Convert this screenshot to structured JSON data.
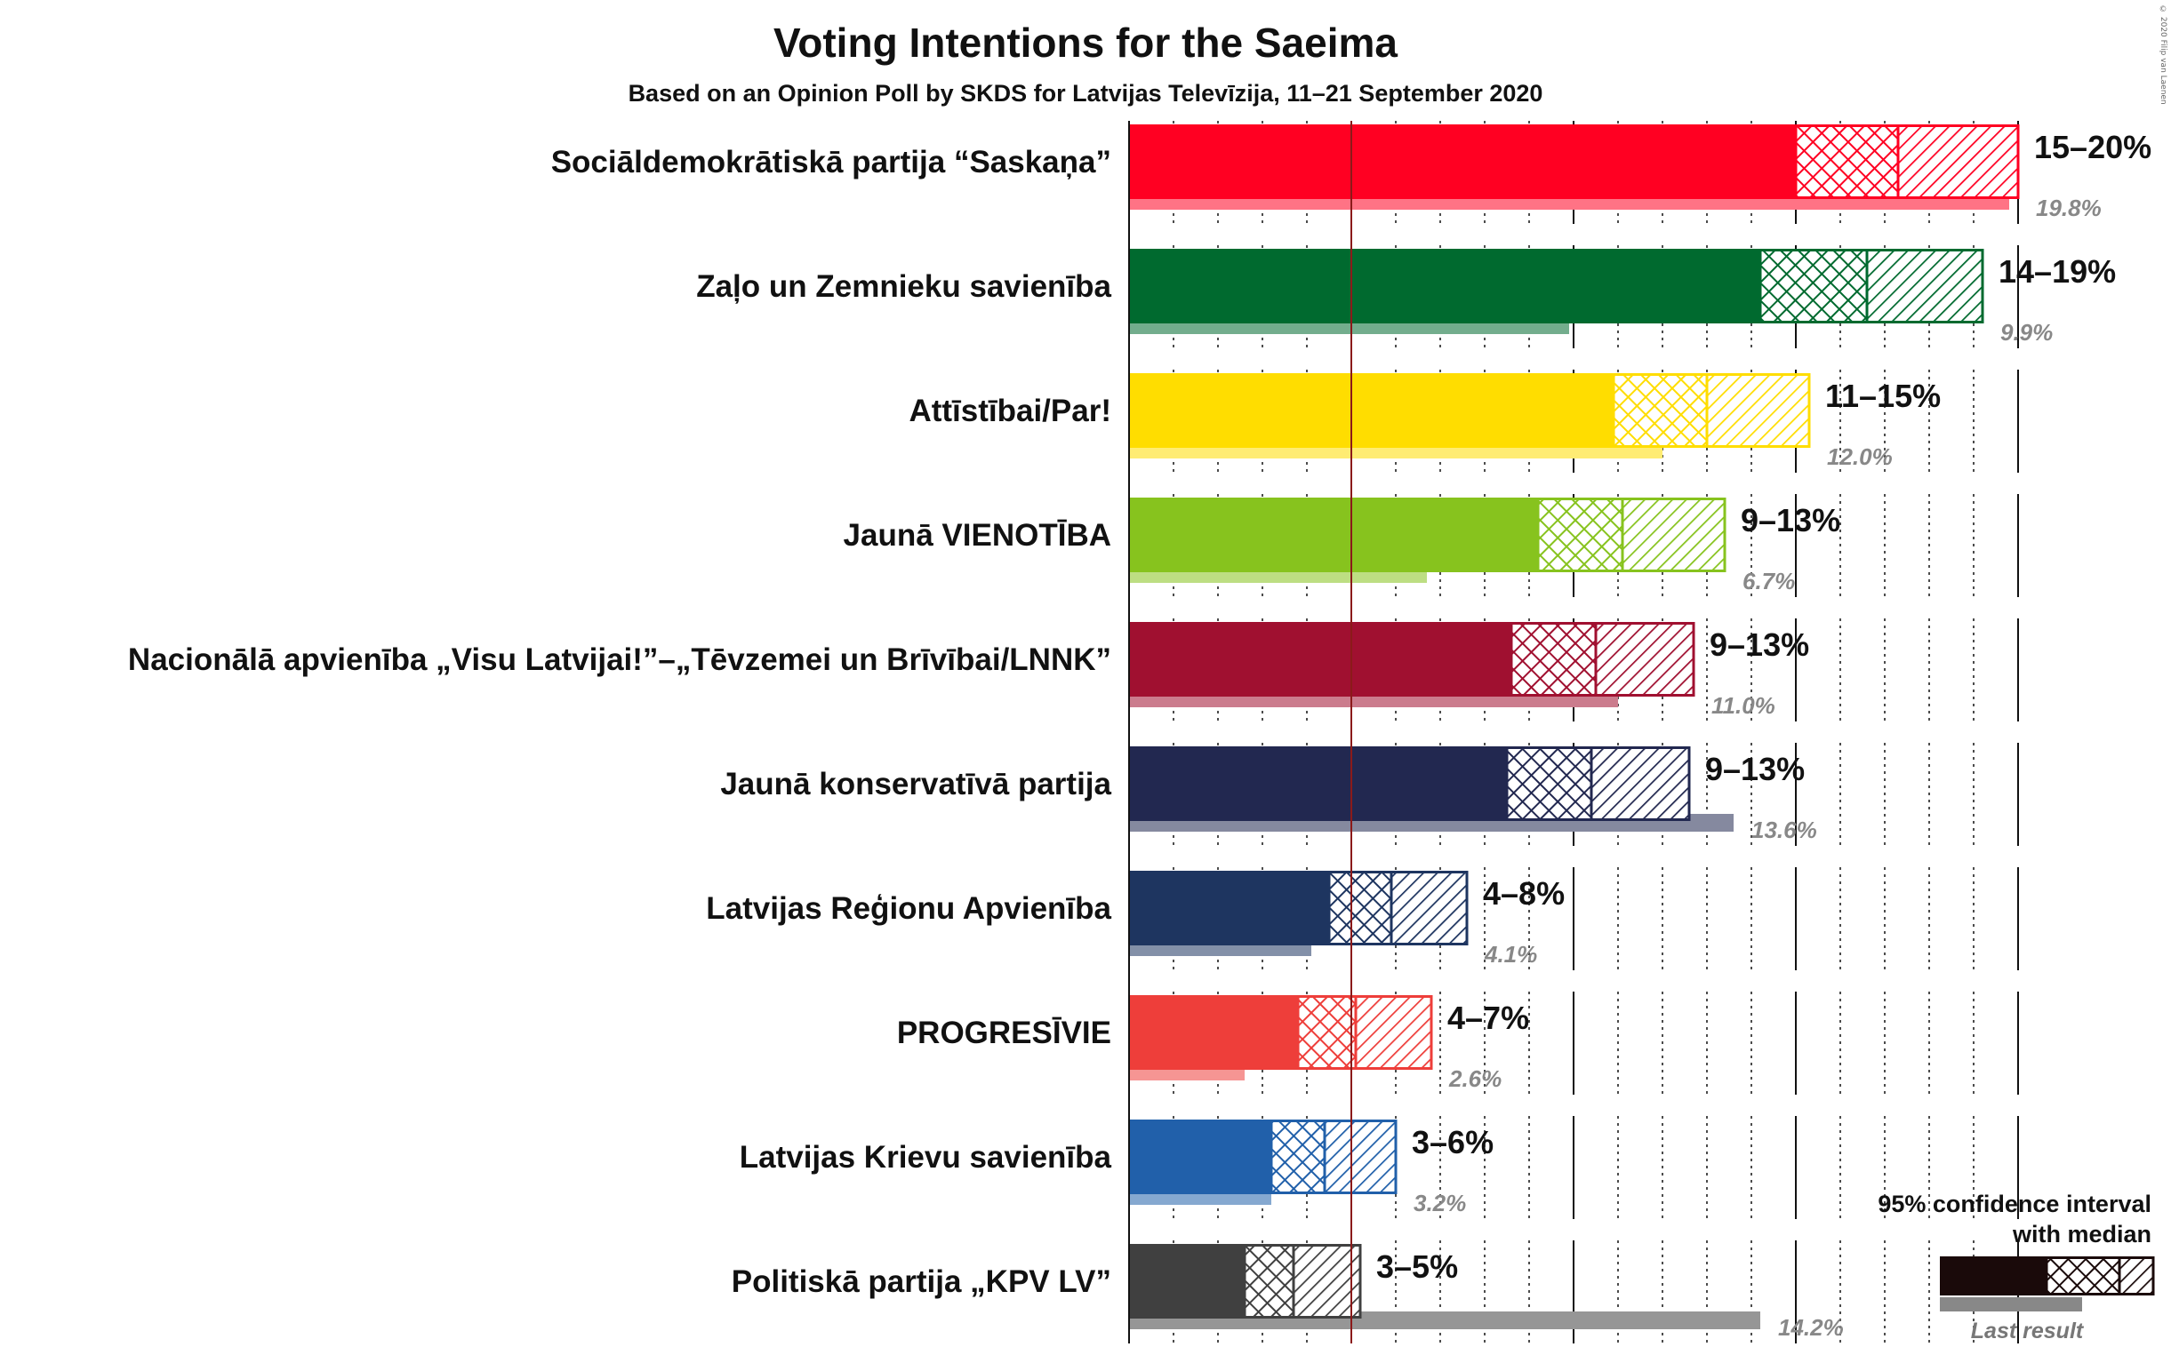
{
  "copyright": "© 2020 Filip van Laenen",
  "chart_data": {
    "type": "bar",
    "title": "Voting Intentions for the Saeima",
    "subtitle": "Based on an Opinion Poll by SKDS for Latvijas Televīzija, 11–21 September 2020",
    "xlim": [
      0,
      20
    ],
    "threshold": 5,
    "legend": {
      "title_line1": "95% confidence interval",
      "title_line2": "with median",
      "last_result_label": "Last result",
      "placement": "bottom-right"
    },
    "series": [
      {
        "party": "Sociāldemokrātiskā partija “Saskaņa”",
        "color": "#FF0022",
        "ci_low": 15.0,
        "median": 17.3,
        "ci_high": 20.0,
        "range_label": "15–20%",
        "last_result": 19.8,
        "last_result_label": "19.8%"
      },
      {
        "party": "Zaļo un Zemnieku savienība",
        "color": "#006A2F",
        "ci_low": 14.2,
        "median": 16.6,
        "ci_high": 19.2,
        "range_label": "14–19%",
        "last_result": 9.9,
        "last_result_label": "9.9%"
      },
      {
        "party": "Attīstībai/Par!",
        "color": "#FFDD00",
        "ci_low": 10.9,
        "median": 13.0,
        "ci_high": 15.3,
        "range_label": "11–15%",
        "last_result": 12.0,
        "last_result_label": "12.0%"
      },
      {
        "party": "Jaunā VIENOTĪBA",
        "color": "#87C31E",
        "ci_low": 9.2,
        "median": 11.1,
        "ci_high": 13.4,
        "range_label": "9–13%",
        "last_result": 6.7,
        "last_result_label": "6.7%"
      },
      {
        "party": "Nacionālā apvienība „Visu Latvijai!”–„Tēvzemei un Brīvībai/LNNK”",
        "color": "#A01030",
        "ci_low": 8.6,
        "median": 10.5,
        "ci_high": 12.7,
        "range_label": "9–13%",
        "last_result": 11.0,
        "last_result_label": "11.0%"
      },
      {
        "party": "Jaunā konservatīvā partija",
        "color": "#222850",
        "ci_low": 8.5,
        "median": 10.4,
        "ci_high": 12.6,
        "range_label": "9–13%",
        "last_result": 13.6,
        "last_result_label": "13.6%"
      },
      {
        "party": "Latvijas Reģionu Apvienība",
        "color": "#1E3560",
        "ci_low": 4.5,
        "median": 5.9,
        "ci_high": 7.6,
        "range_label": "4–8%",
        "last_result": 4.1,
        "last_result_label": "4.1%"
      },
      {
        "party": "PROGRESĪVIE",
        "color": "#EE3E3A",
        "ci_low": 3.8,
        "median": 5.1,
        "ci_high": 6.8,
        "range_label": "4–7%",
        "last_result": 2.6,
        "last_result_label": "2.6%"
      },
      {
        "party": "Latvijas Krievu savienība",
        "color": "#2160AA",
        "ci_low": 3.2,
        "median": 4.4,
        "ci_high": 6.0,
        "range_label": "3–6%",
        "last_result": 3.2,
        "last_result_label": "3.2%"
      },
      {
        "party": "Politiskā partija „KPV LV”",
        "color": "#404040",
        "ci_low": 2.6,
        "median": 3.7,
        "ci_high": 5.2,
        "range_label": "3–5%",
        "last_result": 14.2,
        "last_result_label": "14.2%"
      }
    ]
  }
}
